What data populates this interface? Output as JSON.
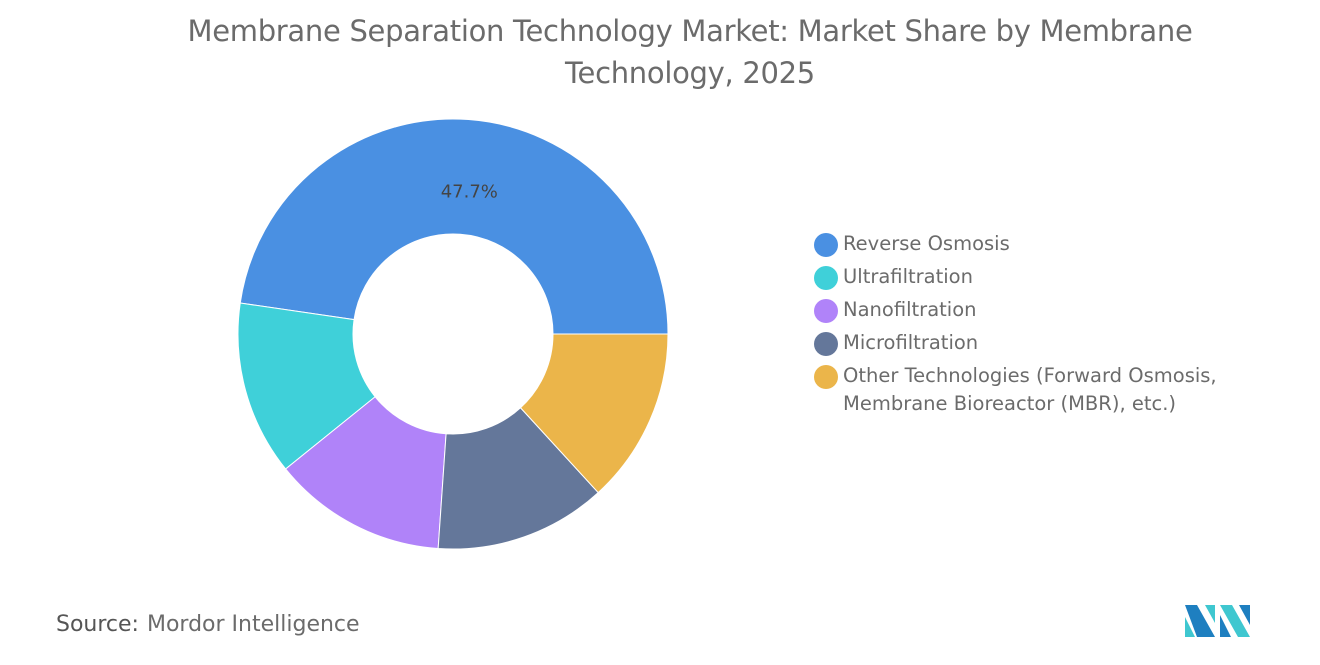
{
  "title": "Membrane Separation Technology Market: Market Share by Membrane Technology, 2025",
  "chart_data": {
    "type": "pie",
    "donut": true,
    "title": "Membrane Separation Technology Market: Market Share by Membrane Technology, 2025",
    "unit": "%",
    "categories": [
      "Reverse Osmosis",
      "Ultrafiltration",
      "Nanofiltration",
      "Microfiltration",
      "Other Technologies (Forward Osmosis, Membrane Bioreactor (MBR), etc.)"
    ],
    "values": [
      47.7,
      13.1,
      13.1,
      12.9,
      13.2
    ],
    "data_labels": [
      "47.7%",
      "",
      "",
      "",
      ""
    ],
    "colors": [
      "#4a90e2",
      "#3fd0d9",
      "#b083f9",
      "#64779a",
      "#ebb54a"
    ],
    "legend_position": "right"
  },
  "source": {
    "label": "Source:",
    "value": "Mordor Intelligence"
  },
  "logo": {
    "text": "Mordor Intelligence",
    "colors": [
      "#1e7fc0",
      "#3fc7d0"
    ]
  }
}
